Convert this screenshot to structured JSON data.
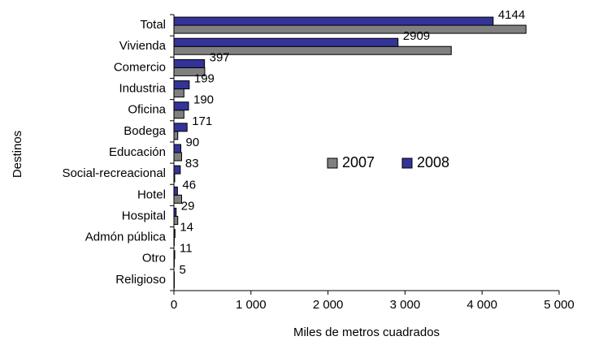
{
  "chart_data": {
    "type": "hbar",
    "y_label": "Destinos",
    "x_label": "Miles de metros cuadrados",
    "categories": [
      "Total",
      "Vivienda",
      "Comercio",
      "Industria",
      "Oficina",
      "Bodega",
      "Educación",
      "Social-recreacional",
      "Hotel",
      "Hospital",
      "Admón pública",
      "Otro",
      "Religioso"
    ],
    "series": [
      {
        "name": "2007",
        "color": "#808080",
        "values": [
          4570,
          3600,
          400,
          130,
          130,
          50,
          100,
          10,
          100,
          50,
          5,
          5,
          5
        ]
      },
      {
        "name": "2008",
        "color": "#333399",
        "values": [
          4144,
          2909,
          397,
          199,
          190,
          171,
          90,
          83,
          46,
          29,
          14,
          11,
          5
        ]
      }
    ],
    "xlim": [
      0,
      5000
    ],
    "xticks": [
      0,
      {
        "value": 1000,
        "label": "1 000"
      },
      {
        "value": 2000,
        "label": "2 000"
      },
      {
        "value": 3000,
        "label": "3 000"
      },
      {
        "value": 4000,
        "label": "4 000"
      },
      {
        "value": 5000,
        "label": "5 000"
      }
    ],
    "grid": false,
    "legend": "right"
  }
}
